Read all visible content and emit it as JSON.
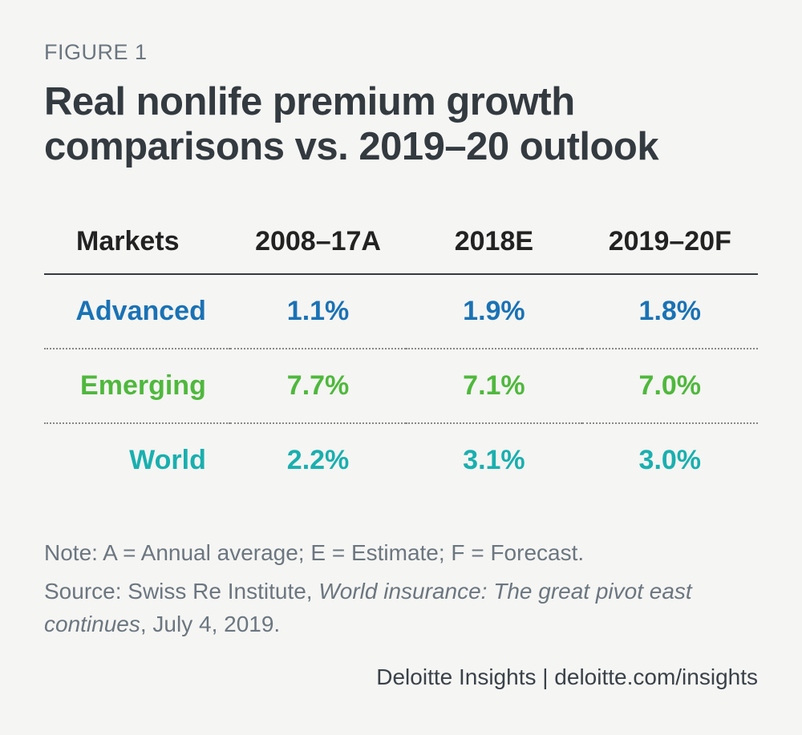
{
  "figure_label": "FIGURE 1",
  "title": "Real nonlife premium growth comparisons vs. 2019–20 outlook",
  "table": {
    "type": "table",
    "columns": [
      "Markets",
      "2008–17A",
      "2018E",
      "2019–20F"
    ],
    "rows": [
      {
        "label": "Advanced",
        "values": [
          "1.1%",
          "1.9%",
          "1.8%"
        ],
        "color": "#1a72b5"
      },
      {
        "label": "Emerging",
        "values": [
          "7.7%",
          "7.1%",
          "7.0%"
        ],
        "color": "#4fb83d"
      },
      {
        "label": "World",
        "values": [
          "2.2%",
          "3.1%",
          "3.0%"
        ],
        "color": "#1aafaf"
      }
    ],
    "header_color": "#222222",
    "header_fontsize": 34,
    "cell_fontsize": 34,
    "border_color": "#333a40",
    "dotted_divider_color": "#888888",
    "background_color": "#f5f5f3"
  },
  "note": "Note: A = Annual average; E = Estimate; F = Forecast.",
  "source_prefix": "Source: Swiss Re Institute, ",
  "source_italic": "World insurance: The great pivot east continues",
  "source_suffix": ", July 4, 2019.",
  "attribution": "Deloitte Insights | deloitte.com/insights",
  "colors": {
    "background": "#f5f5f3",
    "title_text": "#333a40",
    "muted_text": "#6b7680",
    "attribution_text": "#3a4249"
  },
  "typography": {
    "figure_label_fontsize": 27,
    "title_fontsize": 49,
    "note_fontsize": 28
  }
}
